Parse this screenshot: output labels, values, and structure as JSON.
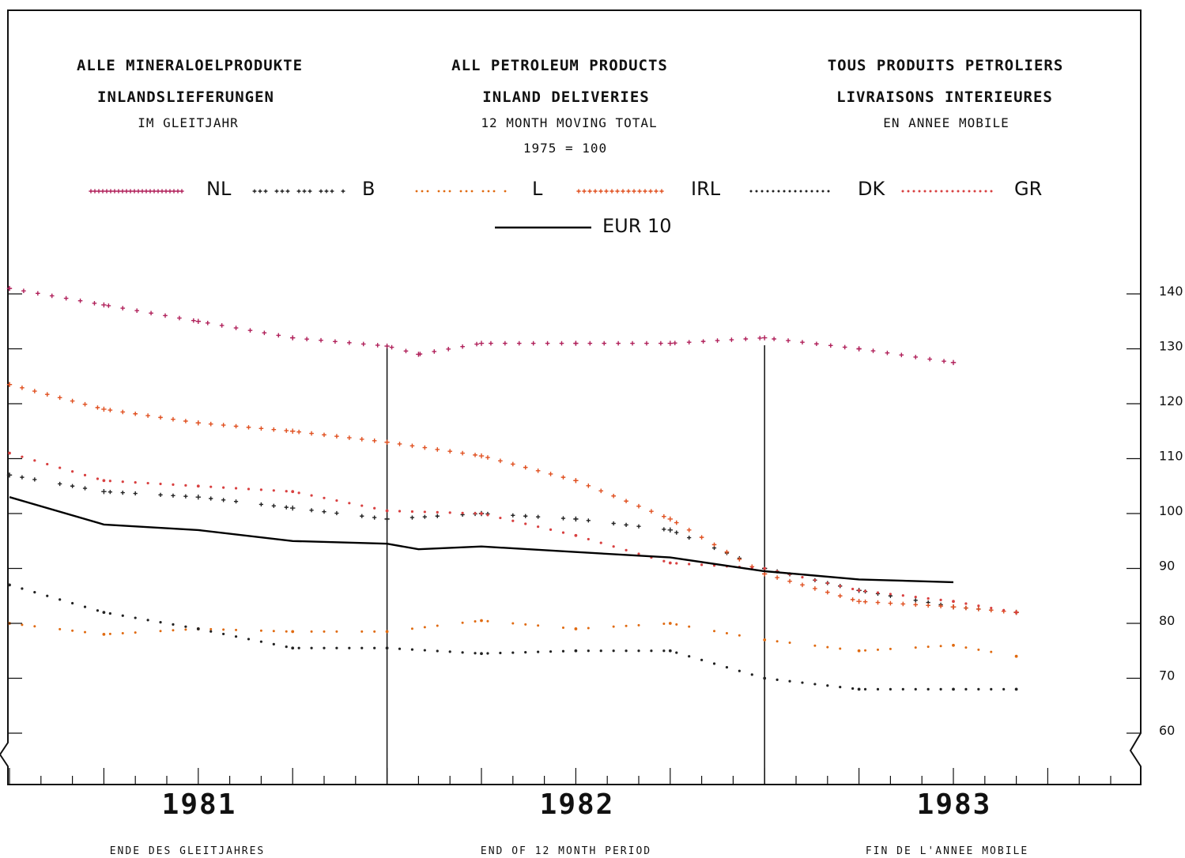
{
  "titles": {
    "de": {
      "line1": "ALLE MINERALOELPRODUKTE",
      "line2": "INLANDSLIEFERUNGEN",
      "line3": "IM GLEITJAHR"
    },
    "en": {
      "line1": "ALL PETROLEUM PRODUCTS",
      "line2": "INLAND DELIVERIES",
      "line3": "12 MONTH MOVING TOTAL",
      "line4": "1975 = 100"
    },
    "fr": {
      "line1": "TOUS PRODUITS PETROLIERS",
      "line2": "LIVRAISONS INTERIEURES",
      "line3": "EN ANNEE MOBILE"
    }
  },
  "legend": {
    "nl": "NL",
    "b": "B",
    "l": "L",
    "irl": "IRL",
    "dk": "DK",
    "gr": "GR",
    "eur": "EUR 10"
  },
  "footer": {
    "de": "ENDE DES GLEITJAHRES",
    "en": "END OF 12 MONTH PERIOD",
    "fr": "FIN DE L'ANNEE MOBILE"
  },
  "chart_data": {
    "type": "line",
    "x_categories": [
      "1981",
      "1982",
      "1983"
    ],
    "x_unit": "month (12 month moving total)",
    "ylim": [
      55,
      145
    ],
    "yticks": [
      60,
      70,
      80,
      90,
      100,
      110,
      120,
      130,
      140
    ],
    "series": [
      {
        "name": "NL",
        "color": "#b0205a",
        "marker": "dense plus",
        "x": [
          0,
          3,
          6,
          9,
          12,
          13,
          15,
          18,
          21,
          24,
          27,
          30
        ],
        "values": [
          141,
          138,
          135,
          132,
          130.5,
          129,
          131,
          131,
          131,
          132,
          130,
          127.5
        ]
      },
      {
        "name": "B",
        "color": "#222222",
        "marker": "triple plus",
        "x": [
          0,
          3,
          6,
          9,
          12,
          15,
          18,
          21,
          24,
          27,
          30,
          32
        ],
        "values": [
          107,
          104,
          103,
          101,
          99,
          100,
          99,
          97,
          90,
          86,
          83,
          82
        ]
      },
      {
        "name": "L",
        "color": "#e06a10",
        "marker": "triple dot",
        "x": [
          0,
          3,
          6,
          9,
          12,
          15,
          18,
          21,
          24,
          27,
          30,
          32
        ],
        "values": [
          80,
          78,
          79,
          78.5,
          78.5,
          80.5,
          79,
          80,
          77,
          75,
          76,
          74
        ]
      },
      {
        "name": "IRL",
        "color": "#e05020",
        "marker": "plus",
        "x": [
          0,
          3,
          6,
          9,
          12,
          15,
          18,
          21,
          24,
          27,
          30,
          32
        ],
        "values": [
          123.5,
          119,
          116.5,
          115,
          113,
          110.5,
          106,
          99,
          89,
          84,
          83,
          82
        ]
      },
      {
        "name": "DK",
        "color": "#222222",
        "marker": "dot",
        "x": [
          0,
          3,
          6,
          9,
          12,
          15,
          18,
          21,
          24,
          27,
          30,
          32
        ],
        "values": [
          87,
          82,
          79,
          75.5,
          75.5,
          74.5,
          75,
          75,
          70,
          68,
          68,
          68
        ]
      },
      {
        "name": "GR",
        "color": "#d84040",
        "marker": "dot",
        "x": [
          0,
          3,
          6,
          9,
          12,
          15,
          18,
          21,
          24,
          27,
          30,
          32
        ],
        "values": [
          111,
          106,
          105,
          104,
          100.5,
          100,
          96,
          91,
          90,
          86,
          84,
          82
        ]
      },
      {
        "name": "EUR 10",
        "color": "#000000",
        "marker": "solid",
        "x": [
          0,
          3,
          6,
          9,
          12,
          13,
          15,
          18,
          21,
          24,
          27,
          30
        ],
        "values": [
          103,
          98,
          97,
          95,
          94.5,
          93.5,
          94,
          93,
          92,
          89.5,
          88,
          87.5
        ]
      }
    ]
  }
}
